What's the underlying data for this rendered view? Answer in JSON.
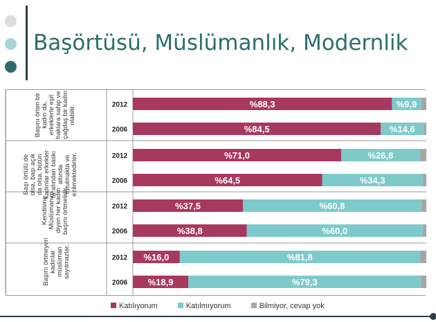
{
  "title": "Başörtüsü, Müslümanlık, Modernlik",
  "colors": {
    "agree": "#a8395e",
    "disagree": "#7ecacb",
    "unknown": "#a6a6a6",
    "dot1": "#dcdcdc",
    "dot2": "#a7d5d6",
    "dot3": "#2e6b69"
  },
  "chart_data": {
    "type": "bar",
    "orientation": "horizontal",
    "stacked": true,
    "value_prefix": "%",
    "groups": [
      {
        "question": "Başını örten bir kadın da, erkeklerle eşit haklara sahip ve çağdaş bir kadın olabilir.",
        "rows": [
          {
            "year": "2012",
            "values": [
              88.3,
              9.9,
              1.8
            ],
            "labels": [
              "%88,3",
              "%9,9",
              ""
            ]
          },
          {
            "year": "2006",
            "values": [
              84.5,
              14.6,
              0.9
            ],
            "labels": [
              "%84,5",
              "%14,6",
              ""
            ]
          }
        ]
      },
      {
        "question": "Başı örtülü de olsa, başı açık da olsa, bütün kadınlar erkekler tarafından baskı altında tutulmakta ve ezilmektedirler.",
        "rows": [
          {
            "year": "2012",
            "values": [
              71.0,
              26.8,
              2.2
            ],
            "labels": [
              "%71,0",
              "%26,8",
              ""
            ]
          },
          {
            "year": "2006",
            "values": [
              64.5,
              34.3,
              1.2
            ],
            "labels": [
              "%64,5",
              "%34,3",
              ""
            ]
          }
        ]
      },
      {
        "question": "Kendisine Müslümanım diyen her kadın başını örtmelidir.",
        "rows": [
          {
            "year": "2012",
            "values": [
              37.5,
              60.8,
              1.7
            ],
            "labels": [
              "%37,5",
              "%60,8",
              ""
            ]
          },
          {
            "year": "2006",
            "values": [
              38.8,
              60.0,
              1.2
            ],
            "labels": [
              "%38,8",
              "%60,0",
              ""
            ]
          }
        ]
      },
      {
        "question": "Başını örtmeyen kadınlar müslüman sayılmazlar.",
        "rows": [
          {
            "year": "2012",
            "values": [
              16.0,
              81.8,
              2.2
            ],
            "labels": [
              "%16,0",
              "%81,8",
              ""
            ]
          },
          {
            "year": "2006",
            "values": [
              18.9,
              79.3,
              1.8
            ],
            "labels": [
              "%18,9",
              "%79,3",
              ""
            ]
          }
        ]
      }
    ],
    "legend": [
      "Katılıyorum",
      "Katılmıyorum",
      "Bilmiyor, cevap yok"
    ],
    "xlim": [
      0,
      100
    ]
  }
}
